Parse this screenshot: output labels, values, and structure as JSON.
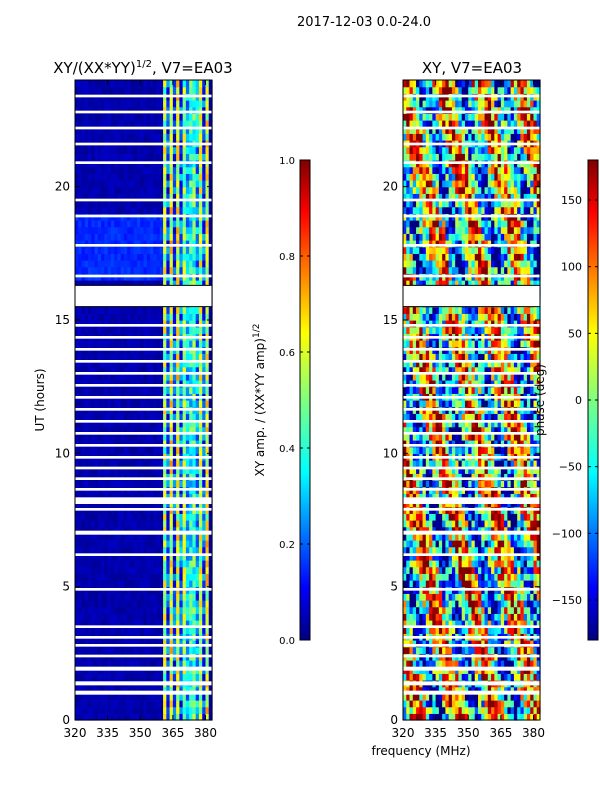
{
  "figure": {
    "suptitle": "2017-12-03 0.0-24.0"
  },
  "chart_data": [
    {
      "type": "heatmap",
      "title_main": "XY/(XX*YY)",
      "title_sup": "1/2",
      "title_rest": ", V7=EA03",
      "xlabel": "",
      "ylabel": "UT (hours)",
      "xlim": [
        320,
        383
      ],
      "ylim": [
        0,
        24
      ],
      "xticks": [
        320,
        335,
        350,
        365,
        380
      ],
      "yticks": [
        0,
        5,
        10,
        15,
        20
      ],
      "xtick_labels": [
        "320",
        "335",
        "350",
        "365",
        "380"
      ],
      "ytick_labels": [
        "0",
        "5",
        "10",
        "15",
        "20"
      ],
      "quantity": "normalized XY amplitude",
      "description": "Mostly near 0 below 360 MHz; 0.3-0.6 in bands between 360 and 380 MHz",
      "colorbar": {
        "label_main": "XY amp. / (XX*YY amp)",
        "label_sup": "1/2",
        "range": [
          0.0,
          1.0
        ],
        "ticks": [
          0.0,
          0.2,
          0.4,
          0.6,
          0.8,
          1.0
        ],
        "tick_labels": [
          "0.0",
          "0.2",
          "0.4",
          "0.6",
          "0.8",
          "1.0"
        ]
      }
    },
    {
      "type": "heatmap",
      "title": "XY, V7=EA03",
      "xlabel": "frequency (MHz)",
      "ylabel": "",
      "xlim": [
        320,
        383
      ],
      "ylim": [
        0,
        24
      ],
      "xticks": [
        320,
        335,
        350,
        365,
        380
      ],
      "yticks": [
        0,
        5,
        10,
        15,
        20
      ],
      "xtick_labels": [
        "320",
        "335",
        "350",
        "365",
        "380"
      ],
      "ytick_labels": [
        "0",
        "5",
        "10",
        "15",
        "20"
      ],
      "quantity": "XY phase (degrees)",
      "description": "Phase spread across -180 to 180 deg, noisy with horizontal flagged gaps",
      "colorbar": {
        "label": "phase (deg)",
        "range": [
          -180,
          180
        ],
        "ticks": [
          -150,
          -100,
          -50,
          0,
          50,
          100,
          150
        ],
        "tick_labels": [
          "−150",
          "−100",
          "−50",
          "0",
          "50",
          "100",
          "150"
        ]
      }
    }
  ],
  "flag_gaps_hours": [
    [
      15.5,
      16.3
    ],
    [
      8.1,
      8.35
    ],
    [
      0.95,
      1.1
    ],
    [
      1.3,
      1.45
    ],
    [
      1.85,
      2.0
    ],
    [
      2.35,
      2.45
    ],
    [
      2.75,
      2.85
    ],
    [
      3.05,
      3.15
    ],
    [
      3.45,
      3.55
    ],
    [
      4.85,
      4.95
    ],
    [
      6.15,
      6.25
    ],
    [
      6.95,
      7.1
    ],
    [
      7.85,
      7.95
    ],
    [
      8.6,
      8.7
    ],
    [
      9.0,
      9.1
    ],
    [
      9.4,
      9.5
    ],
    [
      9.8,
      9.9
    ],
    [
      10.25,
      10.35
    ],
    [
      10.7,
      10.8
    ],
    [
      11.15,
      11.25
    ],
    [
      11.6,
      11.7
    ],
    [
      12.05,
      12.15
    ],
    [
      12.5,
      12.6
    ],
    [
      12.95,
      13.05
    ],
    [
      13.4,
      13.5
    ],
    [
      13.85,
      13.95
    ],
    [
      14.3,
      14.4
    ],
    [
      14.75,
      14.85
    ],
    [
      16.6,
      16.7
    ],
    [
      17.75,
      17.85
    ],
    [
      18.85,
      18.95
    ],
    [
      19.45,
      19.55
    ],
    [
      20.85,
      20.95
    ],
    [
      21.55,
      21.65
    ],
    [
      22.15,
      22.25
    ],
    [
      22.75,
      22.85
    ],
    [
      23.35,
      23.45
    ]
  ]
}
